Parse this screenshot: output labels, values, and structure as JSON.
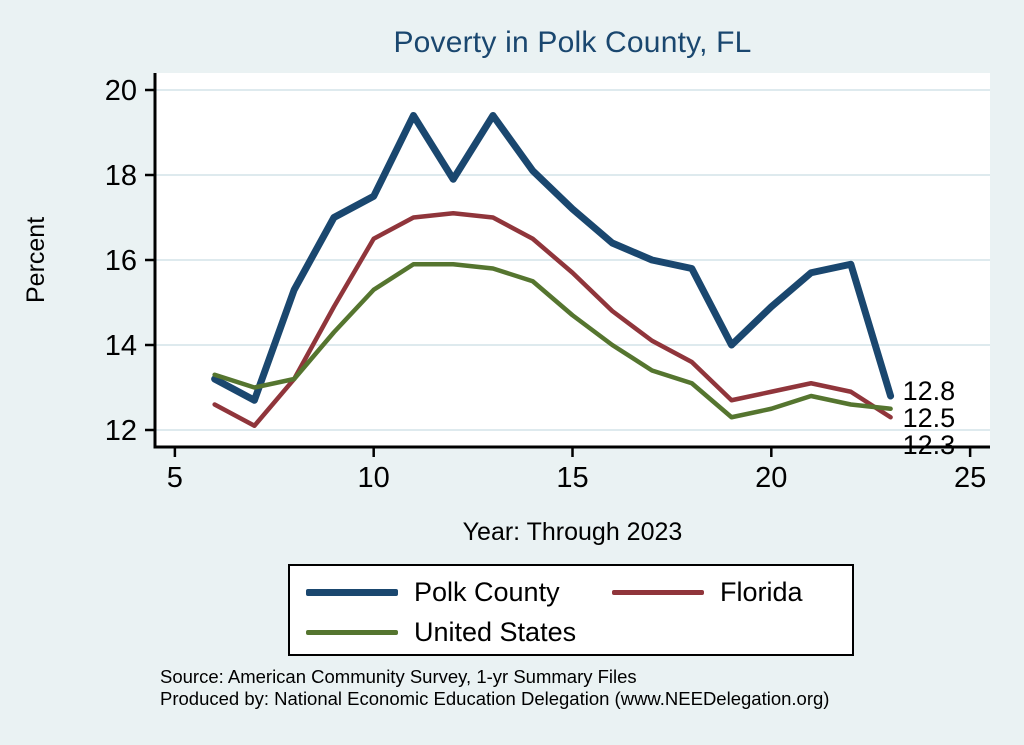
{
  "title": "Poverty in Polk County, FL",
  "xlabel": "Year: Through 2023",
  "ylabel": "Percent",
  "source_line1": "Source: American Community Survey, 1-yr Summary Files",
  "source_line2": "Produced by: National Economic Education Delegation (www.NEEDelegation.org)",
  "colors": {
    "page_background": "#EAF2F3",
    "plot_background": "#FFFFFF",
    "grid": "#D9E7EC",
    "axis": "#000000",
    "text": "#000000",
    "title": "#1A476F"
  },
  "chart_data": {
    "type": "line",
    "x": [
      6,
      7,
      8,
      9,
      10,
      11,
      12,
      13,
      14,
      15,
      16,
      17,
      18,
      19,
      20,
      21,
      22,
      23
    ],
    "series": [
      {
        "name": "Polk County",
        "color": "#1A476F",
        "width": 7,
        "values": [
          13.2,
          12.7,
          15.3,
          17.0,
          17.5,
          19.4,
          17.9,
          19.4,
          18.1,
          17.2,
          16.4,
          16.0,
          15.8,
          14.0,
          14.9,
          15.7,
          15.9,
          12.8
        ]
      },
      {
        "name": "Florida",
        "color": "#90353B",
        "width": 4.5,
        "values": [
          12.6,
          12.1,
          13.2,
          14.9,
          16.5,
          17.0,
          17.1,
          17.0,
          16.5,
          15.7,
          14.8,
          14.1,
          13.6,
          12.7,
          12.9,
          13.1,
          12.9,
          12.3
        ]
      },
      {
        "name": "United States",
        "color": "#55752F",
        "width": 4.5,
        "values": [
          13.3,
          13.0,
          13.2,
          14.3,
          15.3,
          15.9,
          15.9,
          15.8,
          15.5,
          14.7,
          14.0,
          13.4,
          13.1,
          12.3,
          12.5,
          12.8,
          12.6,
          12.5
        ]
      }
    ],
    "end_labels": [
      "12.8",
      "12.5",
      "12.3"
    ],
    "xticks": [
      5,
      10,
      15,
      20,
      25
    ],
    "yticks": [
      12,
      14,
      16,
      18,
      20
    ],
    "xlim": [
      4.5,
      25.5
    ],
    "ylim": [
      11.6,
      20.4
    ],
    "grid": "horizontal",
    "legend_position": "bottom"
  }
}
